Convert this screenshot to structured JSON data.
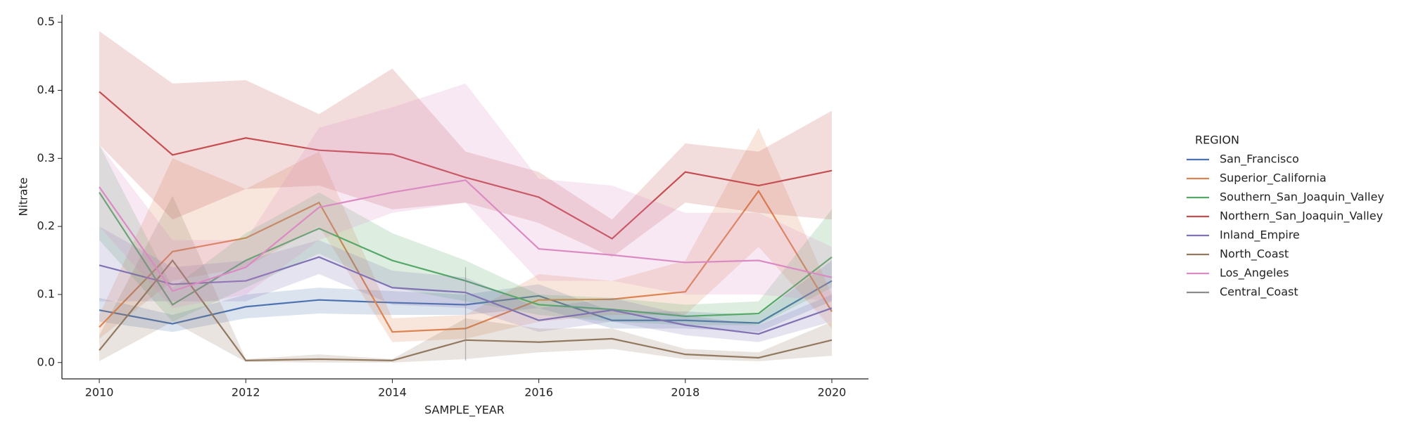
{
  "chart_data": {
    "type": "line",
    "xlabel": "SAMPLE_YEAR",
    "ylabel": "Nitrate",
    "legend_title": "REGION",
    "legend": "right",
    "grid": false,
    "x": [
      2010,
      2011,
      2012,
      2013,
      2014,
      2015,
      2016,
      2017,
      2018,
      2019,
      2020
    ],
    "xlim": [
      2009.49,
      2020.5
    ],
    "xticks": [
      2010,
      2012,
      2014,
      2016,
      2018,
      2020
    ],
    "ylim": [
      -0.024,
      0.511
    ],
    "yticks": [
      {
        "value": 0,
        "label": "0.0"
      },
      0.1,
      0.2,
      0.3,
      0.4,
      0.5
    ],
    "series": [
      {
        "name": "San_Francisco",
        "color": "#4c72b0",
        "values": [
          0.077,
          0.057,
          0.082,
          0.092,
          0.088,
          0.085,
          0.098,
          0.062,
          0.062,
          0.058,
          0.12
        ],
        "ci_lower": [
          0.06,
          0.045,
          0.065,
          0.072,
          0.07,
          0.07,
          0.08,
          0.05,
          0.05,
          0.045,
          0.09
        ],
        "ci_upper": [
          0.095,
          0.07,
          0.1,
          0.11,
          0.105,
          0.1,
          0.115,
          0.075,
          0.075,
          0.07,
          0.15
        ]
      },
      {
        "name": "Superior_California",
        "color": "#dd8452",
        "values": [
          0.052,
          0.163,
          0.183,
          0.235,
          0.045,
          0.05,
          0.092,
          0.093,
          0.104,
          0.252,
          0.075
        ],
        "ci_lower": [
          0.035,
          0.12,
          0.14,
          0.2,
          0.03,
          0.035,
          0.06,
          0.07,
          0.07,
          0.17,
          0.05
        ],
        "ci_upper": [
          0.07,
          0.3,
          0.255,
          0.31,
          0.065,
          0.07,
          0.13,
          0.12,
          0.15,
          0.345,
          0.1
        ]
      },
      {
        "name": "Southern_San_Joaquin_Valley",
        "color": "#55a868",
        "values": [
          0.25,
          0.085,
          0.15,
          0.197,
          0.15,
          0.12,
          0.085,
          0.078,
          0.068,
          0.072,
          0.155
        ],
        "ci_lower": [
          0.18,
          0.06,
          0.11,
          0.16,
          0.11,
          0.09,
          0.07,
          0.06,
          0.055,
          0.055,
          0.11
        ],
        "ci_upper": [
          0.32,
          0.11,
          0.19,
          0.25,
          0.19,
          0.15,
          0.1,
          0.095,
          0.085,
          0.09,
          0.225
        ]
      },
      {
        "name": "Northern_San_Joaquin_Valley",
        "color": "#c44e52",
        "values": [
          0.398,
          0.305,
          0.33,
          0.312,
          0.306,
          0.272,
          0.243,
          0.182,
          0.28,
          0.26,
          0.282
        ],
        "ci_lower": [
          0.32,
          0.21,
          0.255,
          0.26,
          0.225,
          0.235,
          0.205,
          0.155,
          0.235,
          0.22,
          0.21
        ],
        "ci_upper": [
          0.487,
          0.41,
          0.415,
          0.365,
          0.432,
          0.31,
          0.28,
          0.21,
          0.322,
          0.31,
          0.37
        ]
      },
      {
        "name": "Inland_Empire",
        "color": "#8172b3",
        "values": [
          0.143,
          0.115,
          0.12,
          0.155,
          0.11,
          0.103,
          0.062,
          0.077,
          0.055,
          0.042,
          0.08
        ],
        "ci_lower": [
          0.09,
          0.09,
          0.09,
          0.13,
          0.085,
          0.08,
          0.045,
          0.06,
          0.04,
          0.03,
          0.06
        ],
        "ci_upper": [
          0.2,
          0.14,
          0.15,
          0.18,
          0.135,
          0.125,
          0.08,
          0.095,
          0.07,
          0.055,
          0.1
        ]
      },
      {
        "name": "North_Coast",
        "color": "#937860",
        "values": [
          0.018,
          0.15,
          0.003,
          0.005,
          0.003,
          0.033,
          0.03,
          0.035,
          0.012,
          0.007,
          0.033
        ],
        "ci_lower": [
          0.002,
          0.06,
          0.001,
          0.0,
          0.0,
          0.005,
          0.015,
          0.02,
          0.005,
          0.002,
          0.01
        ],
        "ci_upper": [
          0.04,
          0.245,
          0.005,
          0.012,
          0.005,
          0.065,
          0.05,
          0.05,
          0.02,
          0.015,
          0.06
        ]
      },
      {
        "name": "Los_Angeles",
        "color": "#da8bc3",
        "values": [
          0.258,
          0.105,
          0.14,
          0.228,
          0.25,
          0.268,
          0.167,
          0.158,
          0.147,
          0.15,
          0.125
        ],
        "ci_lower": [
          0.2,
          0.08,
          0.1,
          0.18,
          0.22,
          0.235,
          0.12,
          0.12,
          0.1,
          0.1,
          0.09
        ],
        "ci_upper": [
          0.32,
          0.18,
          0.18,
          0.345,
          0.375,
          0.41,
          0.27,
          0.26,
          0.22,
          0.22,
          0.17
        ]
      },
      {
        "name": "Central_Coast",
        "color": "#8c8c8c",
        "values": [
          null,
          null,
          null,
          null,
          null,
          0.07,
          null,
          null,
          null,
          null,
          null
        ],
        "ci_lower": [
          null,
          null,
          null,
          null,
          null,
          0.003,
          null,
          null,
          null,
          null,
          null
        ],
        "ci_upper": [
          null,
          null,
          null,
          null,
          null,
          0.14,
          null,
          null,
          null,
          null,
          null
        ]
      }
    ]
  }
}
